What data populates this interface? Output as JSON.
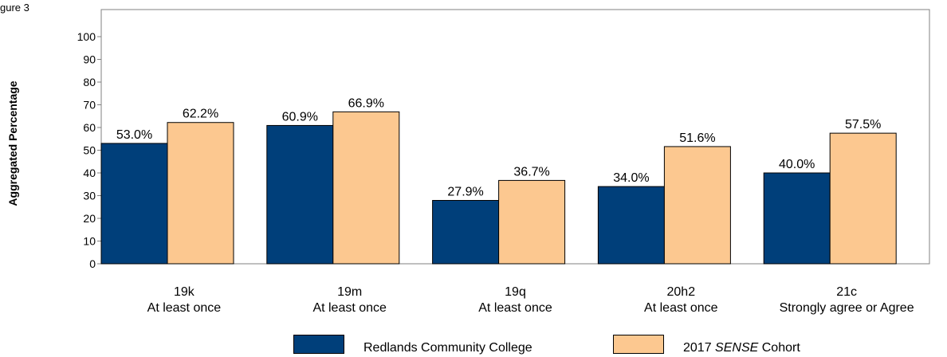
{
  "figure_label": "gure 3",
  "legend": {
    "series0": "Redlands Community College",
    "series1_prefix": "2017 ",
    "series1_italic": "SENSE",
    "series1_suffix": " Cohort"
  },
  "colors": {
    "series0": "#003f7a",
    "series1": "#fcc890"
  },
  "chart_data": {
    "type": "bar",
    "title": "",
    "xlabel": "",
    "ylabel": "Aggregated Percentage",
    "ylim": [
      0,
      100
    ],
    "yticks": [
      0,
      10,
      20,
      30,
      40,
      50,
      60,
      70,
      80,
      90,
      100
    ],
    "grid": false,
    "legend_position": "bottom",
    "categories": [
      [
        "19k",
        "At least once"
      ],
      [
        "19m",
        "At least once"
      ],
      [
        "19q",
        "At least once"
      ],
      [
        "20h2",
        "At least once"
      ],
      [
        "21c",
        "Strongly agree or Agree"
      ]
    ],
    "series": [
      {
        "name": "Redlands Community College",
        "values": [
          53.0,
          60.9,
          27.9,
          34.0,
          40.0
        ],
        "labels": [
          "53.0%",
          "60.9%",
          "27.9%",
          "34.0%",
          "40.0%"
        ]
      },
      {
        "name": "2017 SENSE Cohort",
        "values": [
          62.2,
          66.9,
          36.7,
          51.6,
          57.5
        ],
        "labels": [
          "62.2%",
          "66.9%",
          "36.7%",
          "51.6%",
          "57.5%"
        ]
      }
    ]
  }
}
